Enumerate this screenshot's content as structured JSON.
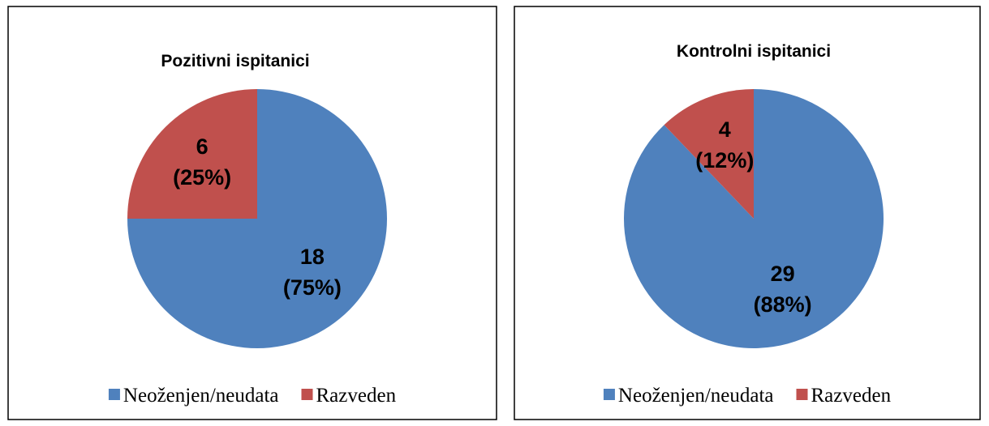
{
  "chart_data": [
    {
      "type": "pie",
      "title": "Pozitivni ispitanici",
      "categories": [
        "Neoženjen/neudata",
        "Razveden"
      ],
      "values": [
        18,
        6
      ],
      "value_labels": [
        [
          "18",
          "(75%)"
        ],
        [
          "6",
          "(25%)"
        ]
      ],
      "colors": [
        "#4f81bd",
        "#c0504d"
      ],
      "legend": "bottom"
    },
    {
      "type": "pie",
      "title": "Kontrolni ispitanici",
      "categories": [
        "Neoženjen/neudata",
        "Razveden"
      ],
      "values": [
        29,
        4
      ],
      "value_labels": [
        [
          "29",
          "(88%)"
        ],
        [
          "4",
          "(12%)"
        ]
      ],
      "colors": [
        "#4f81bd",
        "#c0504d"
      ],
      "legend": "bottom"
    }
  ]
}
